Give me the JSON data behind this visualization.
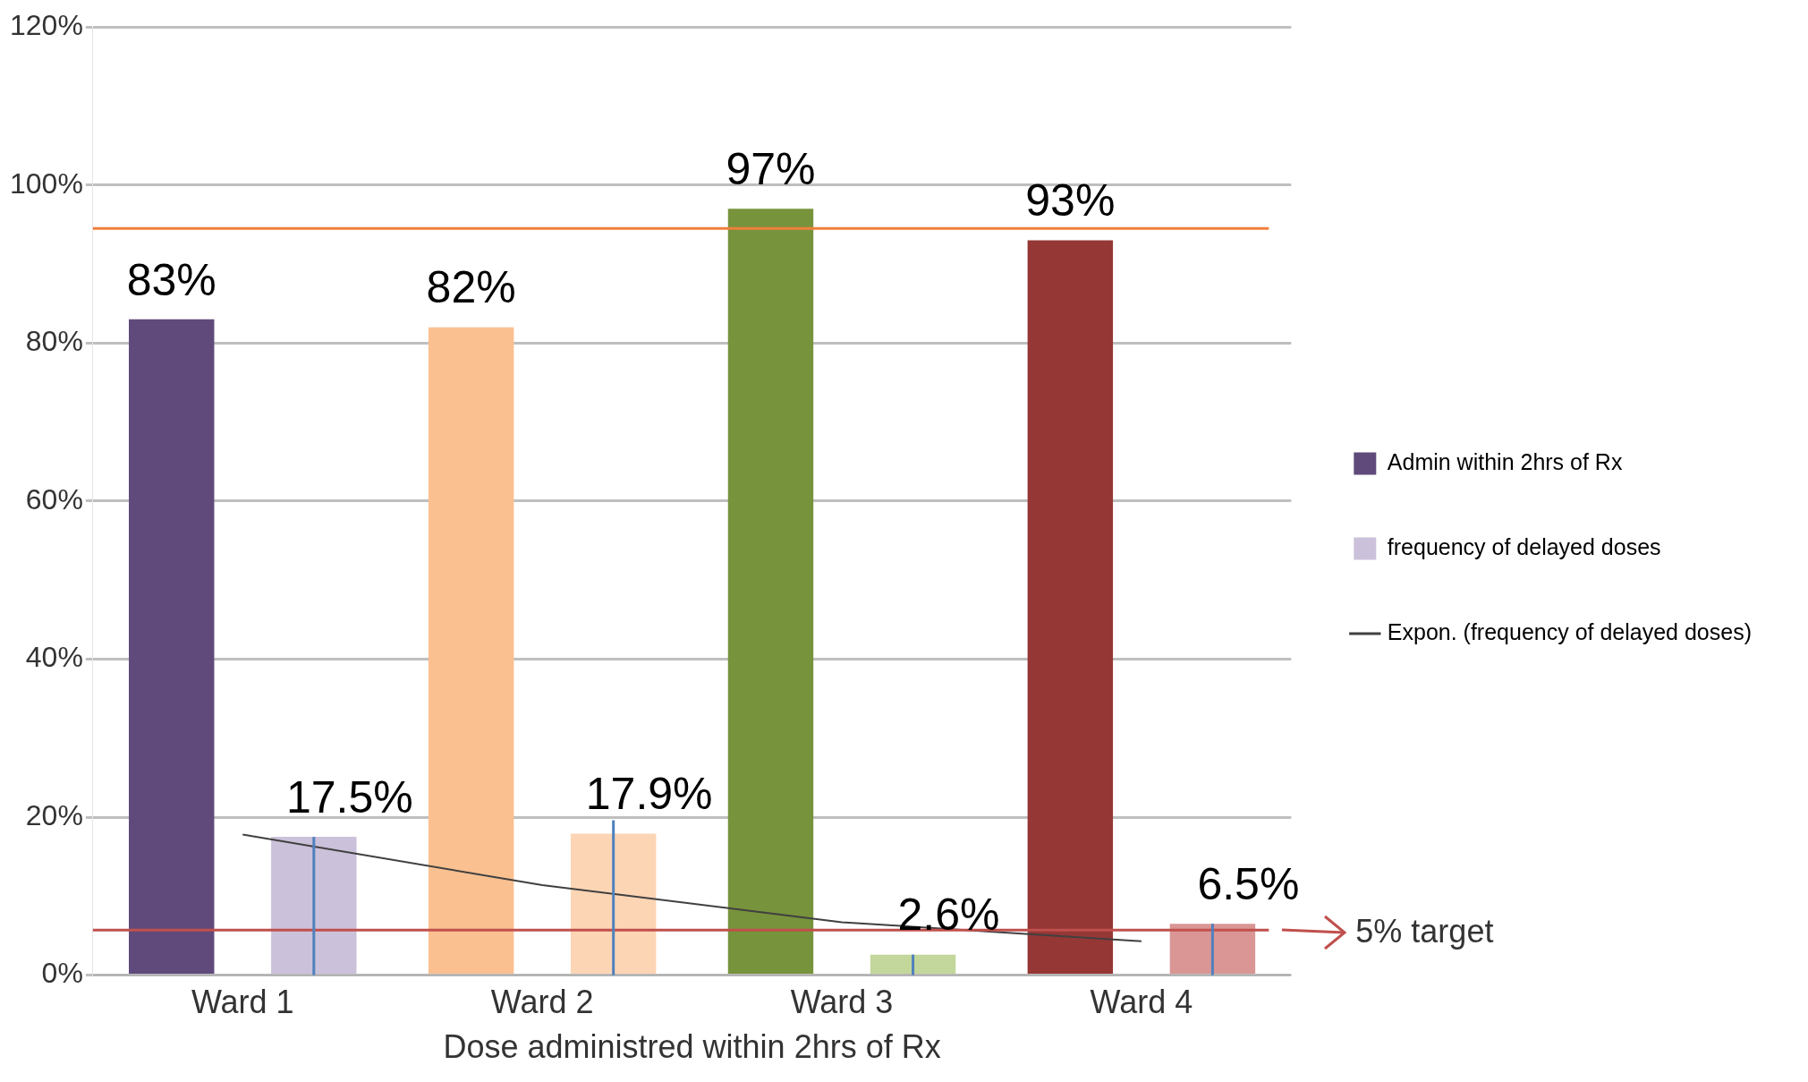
{
  "chart_data": {
    "type": "bar",
    "categories": [
      "Ward 1",
      "Ward 2",
      "Ward 3",
      "Ward 4"
    ],
    "xlabel": "Dose administred within 2hrs of Rx",
    "series": [
      {
        "name": "Admin within 2hrs of Rx",
        "colors": [
          "#604a7b",
          "#fac090",
          "#77933c",
          "#953735"
        ],
        "values": [
          83,
          82,
          97,
          93
        ],
        "value_labels": [
          "83%",
          "82%",
          "97%",
          "93%"
        ]
      },
      {
        "name": "frequency of delayed doses",
        "color": "#ccc1da",
        "colors": [
          "#ccc1da",
          "#fcd5b5",
          "#c3d69b",
          "#d99694"
        ],
        "values": [
          17.5,
          17.9,
          2.6,
          6.5
        ],
        "value_labels": [
          "17.5%",
          "17.9%",
          "2.6%",
          "6.5%"
        ],
        "errors": [
          [
            0,
            17.5
          ],
          [
            0,
            19.6
          ],
          [
            0,
            2.6
          ],
          [
            0,
            6.5
          ]
        ]
      },
      {
        "name": "Expon. (frequency of delayed doses)",
        "type": "line",
        "color": "#404040",
        "marker": "none",
        "values": [
          17.8,
          11.4,
          6.7,
          4.3
        ]
      }
    ],
    "ylim": [
      0,
      120
    ],
    "yticks": [
      {
        "value": 0,
        "label": "0%"
      },
      {
        "value": 20,
        "label": "20%"
      },
      {
        "value": 40,
        "label": "40%"
      },
      {
        "value": 60,
        "label": "60%"
      },
      {
        "value": 80,
        "label": "80%"
      },
      {
        "value": 100,
        "label": "100%"
      },
      {
        "value": 120,
        "label": "120%"
      }
    ],
    "grid": "y",
    "legend": "right",
    "ref_lines": [
      {
        "axis": "y",
        "value": 94.5,
        "color": "#f07f3c"
      },
      {
        "axis": "y",
        "value": 5.7,
        "color": "#c0504d",
        "label": "5% target"
      }
    ]
  }
}
